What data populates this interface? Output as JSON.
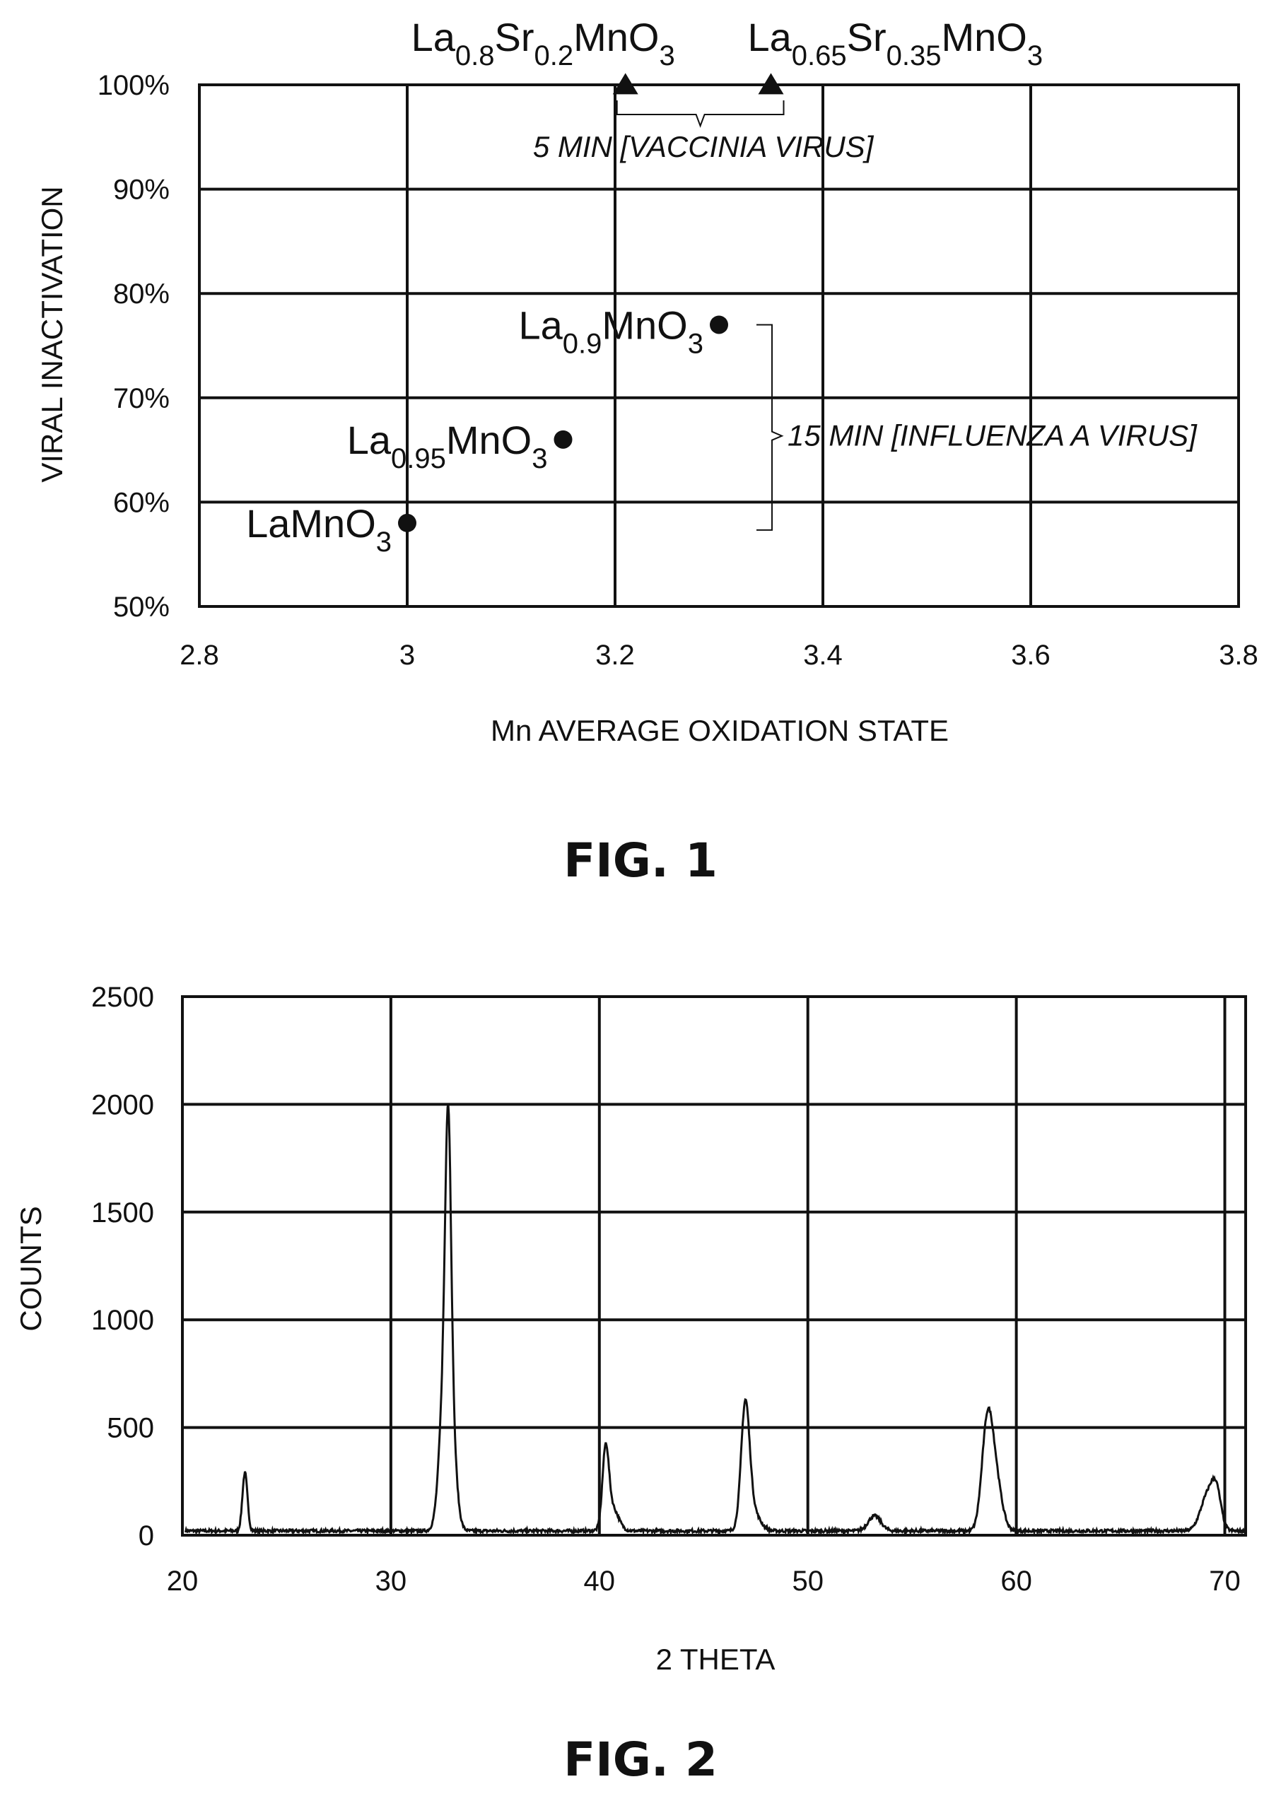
{
  "chart_data": [
    {
      "type": "scatter",
      "caption": "FIG. 1",
      "xlabel": "Mn AVERAGE OXIDATION STATE",
      "ylabel": "VIRAL INACTIVATION",
      "xlim": [
        2.8,
        3.8
      ],
      "ylim": [
        0.5,
        1.0
      ],
      "x_ticks": [
        "2.8",
        "3",
        "3.2",
        "3.4",
        "3.6",
        "3.8"
      ],
      "y_ticks": [
        "50%",
        "60%",
        "70%",
        "80%",
        "90%",
        "100%"
      ],
      "grid": true,
      "series": [
        {
          "marker": "triangle",
          "points": [
            {
              "x": 3.21,
              "y": 0.995,
              "label": {
                "parts": [
                  "La",
                  "0.8",
                  "Sr",
                  "0.2",
                  "MnO",
                  "3"
                ]
              }
            },
            {
              "x": 3.35,
              "y": 0.995,
              "label": {
                "parts": [
                  "La",
                  "0.65",
                  "Sr",
                  "0.35",
                  "MnO",
                  "3"
                ]
              }
            }
          ]
        },
        {
          "marker": "circle",
          "points": [
            {
              "x": 3.3,
              "y": 0.77,
              "label": {
                "parts": [
                  "La",
                  "0.9",
                  "MnO",
                  "3"
                ]
              }
            },
            {
              "x": 3.15,
              "y": 0.66,
              "label": {
                "parts": [
                  "La",
                  "0.95",
                  "MnO",
                  "3"
                ]
              }
            },
            {
              "x": 3.0,
              "y": 0.58,
              "label": {
                "parts": [
                  "LaMnO",
                  "3"
                ]
              }
            }
          ]
        }
      ],
      "annotations": [
        {
          "text": "5 MIN [VACCINIA VIRUS]",
          "groups": "triangle"
        },
        {
          "text": "15 MIN [INFLUENZA  A  VIRUS]",
          "groups": "circle"
        }
      ]
    },
    {
      "type": "line",
      "caption": "FIG. 2",
      "xlabel": "2 THETA",
      "ylabel": "COUNTS",
      "xlim": [
        20,
        71
      ],
      "ylim": [
        0,
        2500
      ],
      "x_ticks": [
        "20",
        "30",
        "40",
        "50",
        "60",
        "70"
      ],
      "y_ticks": [
        "0",
        "500",
        "1000",
        "1500",
        "2000",
        "2500"
      ],
      "grid": true,
      "baseline": 20,
      "peaks": [
        {
          "x": 23.0,
          "y": 270,
          "w": 0.12
        },
        {
          "x": 32.7,
          "y": 1000,
          "w": 0.28
        },
        {
          "x": 32.75,
          "y": 1000,
          "w": 0.13
        },
        {
          "x": 40.3,
          "y": 340,
          "w": 0.15
        },
        {
          "x": 40.6,
          "y": 110,
          "w": 0.3
        },
        {
          "x": 47.0,
          "y": 540,
          "w": 0.2
        },
        {
          "x": 47.3,
          "y": 100,
          "w": 0.35
        },
        {
          "x": 53.2,
          "y": 70,
          "w": 0.3
        },
        {
          "x": 58.6,
          "y": 460,
          "w": 0.26
        },
        {
          "x": 59.0,
          "y": 230,
          "w": 0.3
        },
        {
          "x": 69.2,
          "y": 170,
          "w": 0.35
        },
        {
          "x": 69.6,
          "y": 140,
          "w": 0.22
        }
      ]
    }
  ]
}
